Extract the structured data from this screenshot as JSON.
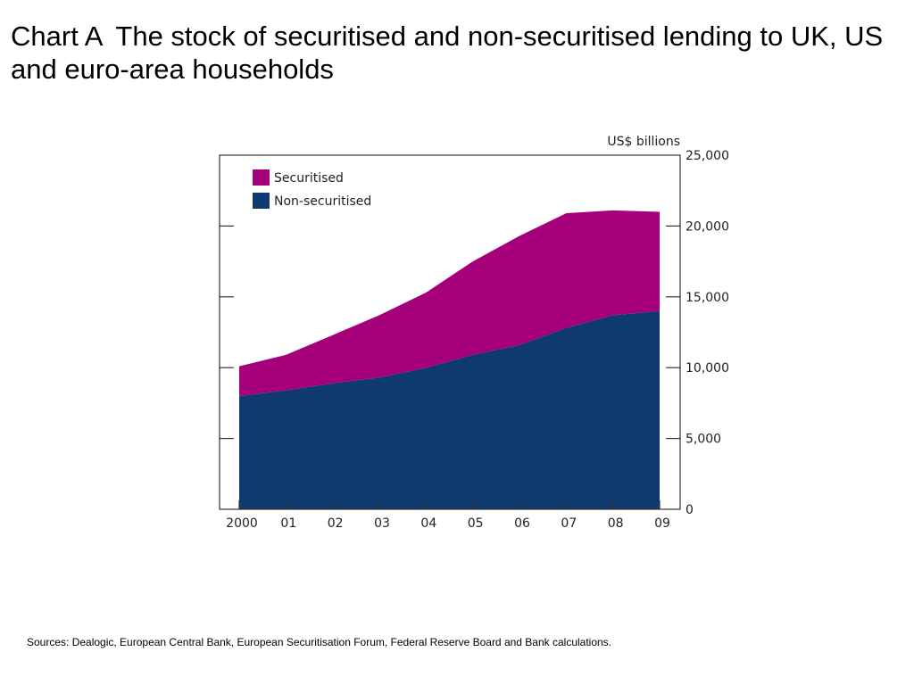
{
  "slide": {
    "title_label": "Chart A",
    "title_text": "The stock of securitised and non-securitised lending to UK, US and euro-area households",
    "sources": "Sources:  Dealogic, European Central Bank, European Securitisation Forum, Federal Reserve Board and Bank calculations."
  },
  "chart_data": {
    "type": "area",
    "stacked": true,
    "unit_label": "US$ billions",
    "x": [
      "2000",
      "01",
      "02",
      "03",
      "04",
      "05",
      "06",
      "07",
      "08",
      "09"
    ],
    "series": [
      {
        "name": "Non-securitised",
        "color": "#0f3a6e",
        "values": [
          8000,
          8400,
          8900,
          9300,
          10000,
          10900,
          11600,
          12800,
          13700,
          14000
        ]
      },
      {
        "name": "Securitised",
        "color": "#a5007a",
        "values": [
          2100,
          2500,
          3400,
          4400,
          5300,
          6600,
          7700,
          8100,
          7400,
          7000
        ]
      }
    ],
    "legend_order": [
      "Securitised",
      "Non-securitised"
    ],
    "legend_position": "top-left",
    "ylim": [
      0,
      25000
    ],
    "yticks": [
      0,
      5000,
      10000,
      15000,
      20000,
      25000
    ],
    "ytick_labels": [
      "0",
      "5,000",
      "10,000",
      "15,000",
      "20,000",
      "25,000"
    ],
    "y_axis_side": "right",
    "grid": false
  }
}
